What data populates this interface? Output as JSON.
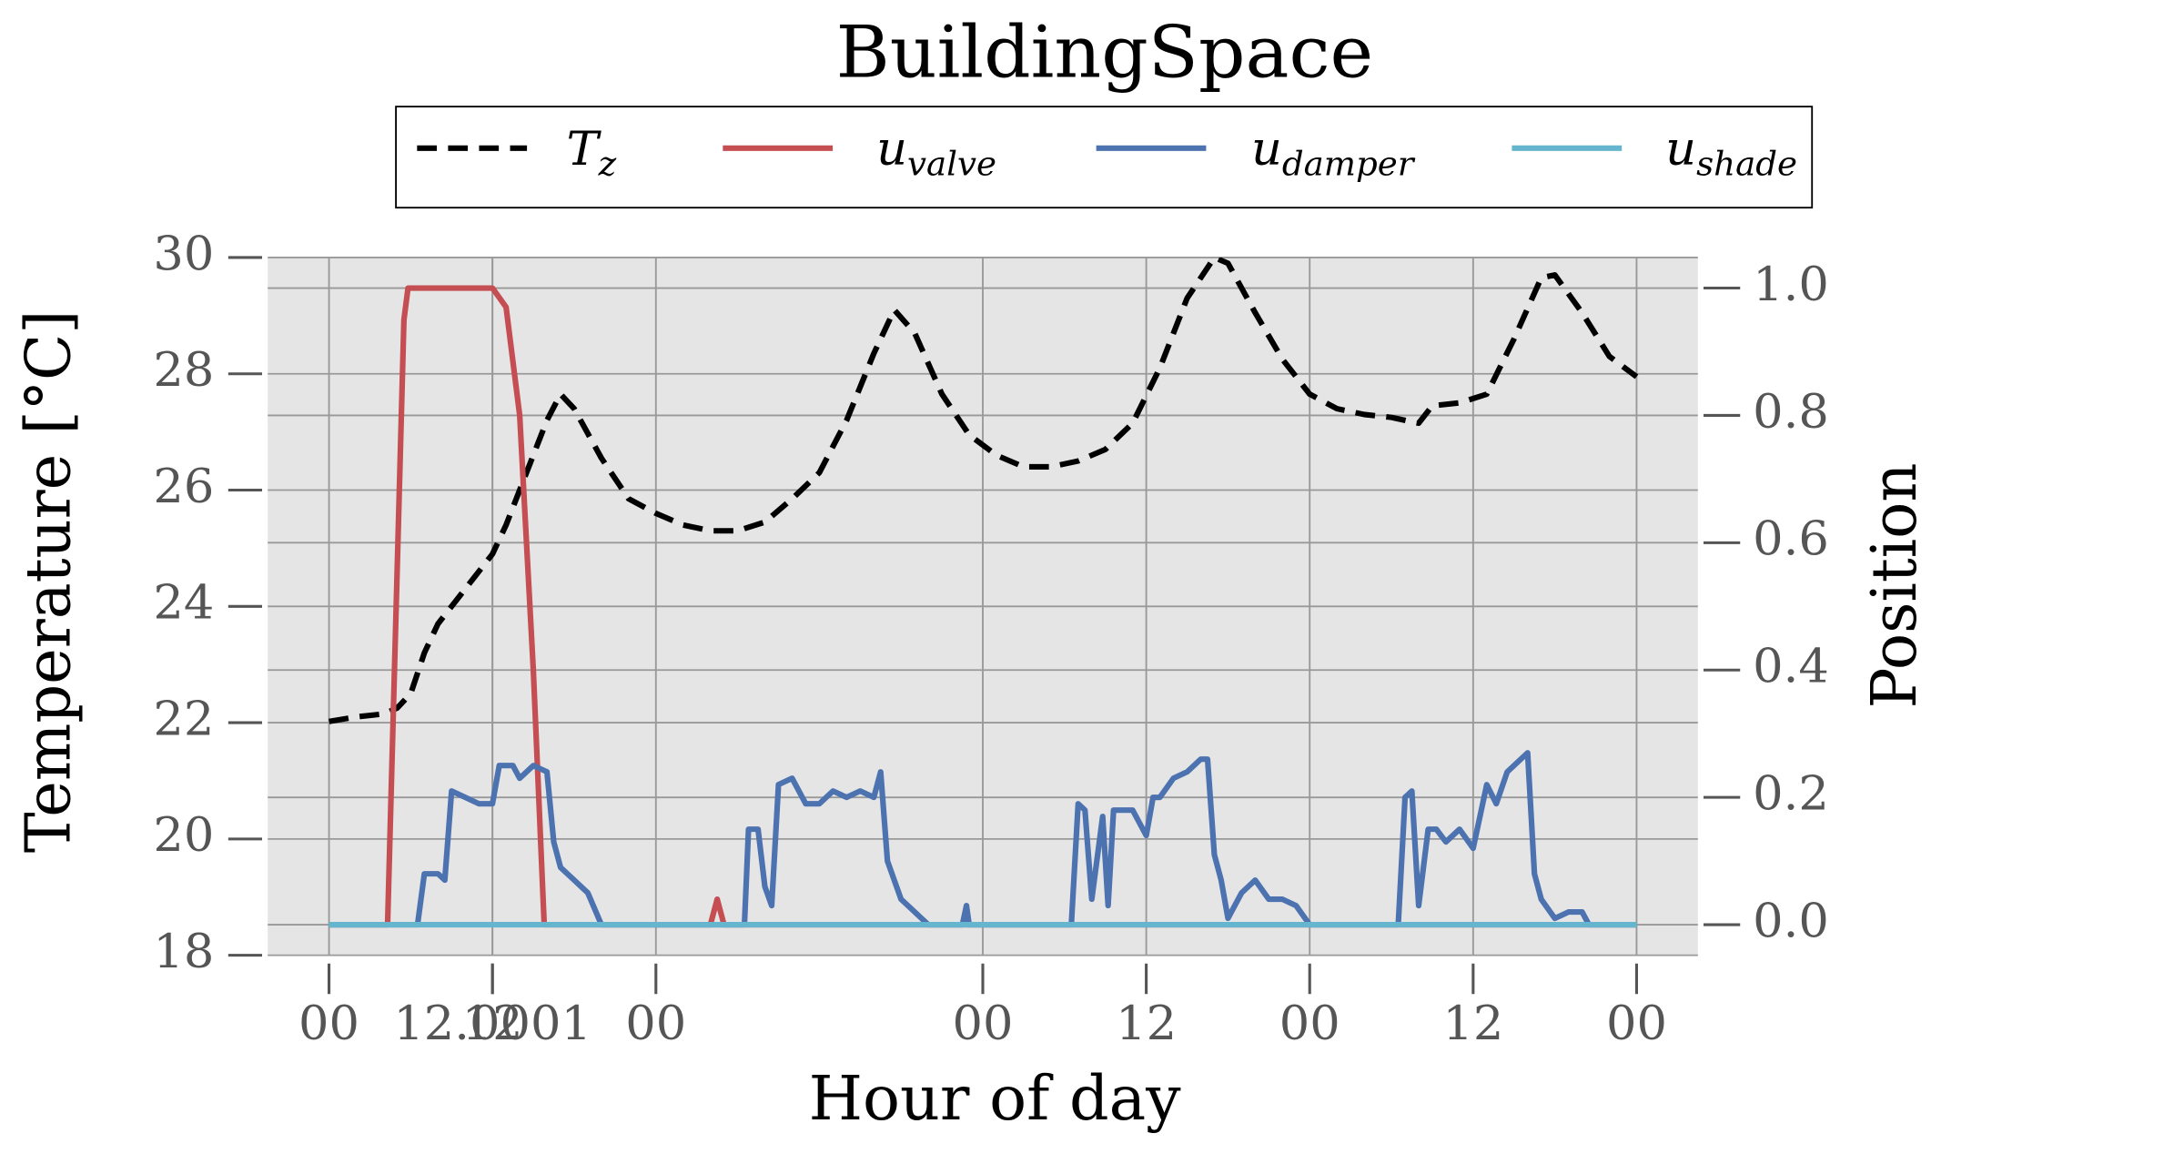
{
  "chart_data": {
    "type": "line",
    "title": "BuildingSpace",
    "x_label": "Hour of day",
    "y_label": "Temperature [°C]",
    "y2_label": "Position",
    "xlim": [
      -4.5,
      100.5
    ],
    "xticks": [
      {
        "value": 0,
        "label": "00"
      },
      12,
      {
        "value": 24,
        "label": "00"
      },
      12.0001,
      {
        "value": 48,
        "label": "00"
      },
      {
        "value": 60,
        "label": "12"
      },
      {
        "value": 72,
        "label": "00"
      },
      {
        "value": 84,
        "label": "12"
      },
      {
        "value": 96,
        "label": "00"
      }
    ],
    "ylim": [
      18,
      30
    ],
    "yticks": [
      18,
      20,
      22,
      24,
      26,
      28,
      30
    ],
    "y2lim": [
      -0.048,
      1.048
    ],
    "y2ticks": [
      {
        "value": 0,
        "label": "0.0"
      },
      0.2,
      0.4,
      0.6,
      0.8,
      {
        "value": 1,
        "label": "1.0"
      }
    ],
    "grid": true,
    "legend": "top",
    "series": [
      {
        "name": "Tz",
        "color": "#000000",
        "linestyle": "dashed",
        "x": [
          0,
          2,
          4,
          5,
          6,
          7,
          8,
          10,
          12,
          13,
          14,
          16,
          17,
          18,
          20,
          22,
          24,
          26,
          28,
          30,
          32,
          34,
          36,
          38,
          40,
          41.5,
          43,
          45,
          47,
          49,
          51,
          53,
          55,
          57,
          59,
          61,
          63,
          65,
          66,
          68,
          70,
          72,
          74,
          76,
          78,
          80,
          81,
          83,
          85,
          87,
          89,
          90,
          92,
          94,
          96
        ],
        "values": [
          22.02,
          22.1,
          22.15,
          22.25,
          22.5,
          23.2,
          23.7,
          24.3,
          24.9,
          25.4,
          26.0,
          27.2,
          27.65,
          27.4,
          26.55,
          25.85,
          25.6,
          25.4,
          25.3,
          25.3,
          25.45,
          25.85,
          26.3,
          27.2,
          28.35,
          29.1,
          28.7,
          27.65,
          26.95,
          26.6,
          26.4,
          26.4,
          26.5,
          26.7,
          27.15,
          28.1,
          29.3,
          30.0,
          29.9,
          29.05,
          28.25,
          27.65,
          27.4,
          27.3,
          27.25,
          27.15,
          27.45,
          27.5,
          27.65,
          28.6,
          29.65,
          29.7,
          29.05,
          28.3,
          27.95
        ]
      },
      {
        "name": "uvalve",
        "color": "#c44e52",
        "axis": "y2",
        "x": [
          0,
          4.3,
          5.5,
          5.8,
          12,
          13,
          14,
          15,
          15.8,
          28,
          28.5,
          29,
          96
        ],
        "values": [
          0,
          0,
          0.95,
          1.0,
          1.0,
          0.97,
          0.8,
          0.4,
          0,
          0,
          0.04,
          0,
          0
        ]
      },
      {
        "name": "udamper",
        "color": "#4c72b0",
        "axis": "y2",
        "x": [
          0,
          6.5,
          7,
          8,
          8.5,
          9,
          10,
          11,
          12,
          12.5,
          13.5,
          14,
          15,
          16,
          16.5,
          17,
          18,
          19,
          20,
          30.5,
          30.8,
          31.5,
          32,
          32.5,
          33,
          34,
          35,
          36,
          37,
          38,
          39,
          40,
          40.5,
          41,
          42,
          43,
          44,
          46.5,
          46.8,
          47,
          54.5,
          55,
          55.5,
          56,
          56.8,
          57.2,
          57.6,
          58,
          59,
          60,
          60.5,
          61,
          62,
          63,
          64,
          64.5,
          65,
          65.5,
          66,
          67,
          68,
          69,
          70,
          71,
          72,
          78.5,
          79,
          79.5,
          80,
          80.7,
          81.3,
          82,
          83,
          84,
          85,
          85.7,
          86.5,
          87.5,
          88,
          88.5,
          89,
          90,
          91,
          92,
          92.5,
          96
        ],
        "values": [
          0,
          0,
          0.08,
          0.08,
          0.07,
          0.21,
          0.2,
          0.19,
          0.19,
          0.25,
          0.25,
          0.23,
          0.25,
          0.24,
          0.13,
          0.09,
          0.07,
          0.05,
          0,
          0,
          0.15,
          0.15,
          0.06,
          0.03,
          0.22,
          0.23,
          0.19,
          0.19,
          0.21,
          0.2,
          0.21,
          0.2,
          0.24,
          0.1,
          0.04,
          0.02,
          0,
          0,
          0.03,
          0,
          0,
          0.19,
          0.18,
          0.04,
          0.17,
          0.03,
          0.18,
          0.18,
          0.18,
          0.14,
          0.2,
          0.2,
          0.23,
          0.24,
          0.26,
          0.26,
          0.11,
          0.07,
          0.01,
          0.05,
          0.07,
          0.04,
          0.04,
          0.03,
          0,
          0,
          0.2,
          0.21,
          0.03,
          0.15,
          0.15,
          0.13,
          0.15,
          0.12,
          0.22,
          0.19,
          0.24,
          0.26,
          0.27,
          0.08,
          0.04,
          0.01,
          0.02,
          0.02,
          0,
          0
        ]
      },
      {
        "name": "ushade",
        "color": "#64b5cd",
        "axis": "y2",
        "x": [
          0,
          96
        ],
        "values": [
          0,
          0
        ]
      }
    ]
  }
}
